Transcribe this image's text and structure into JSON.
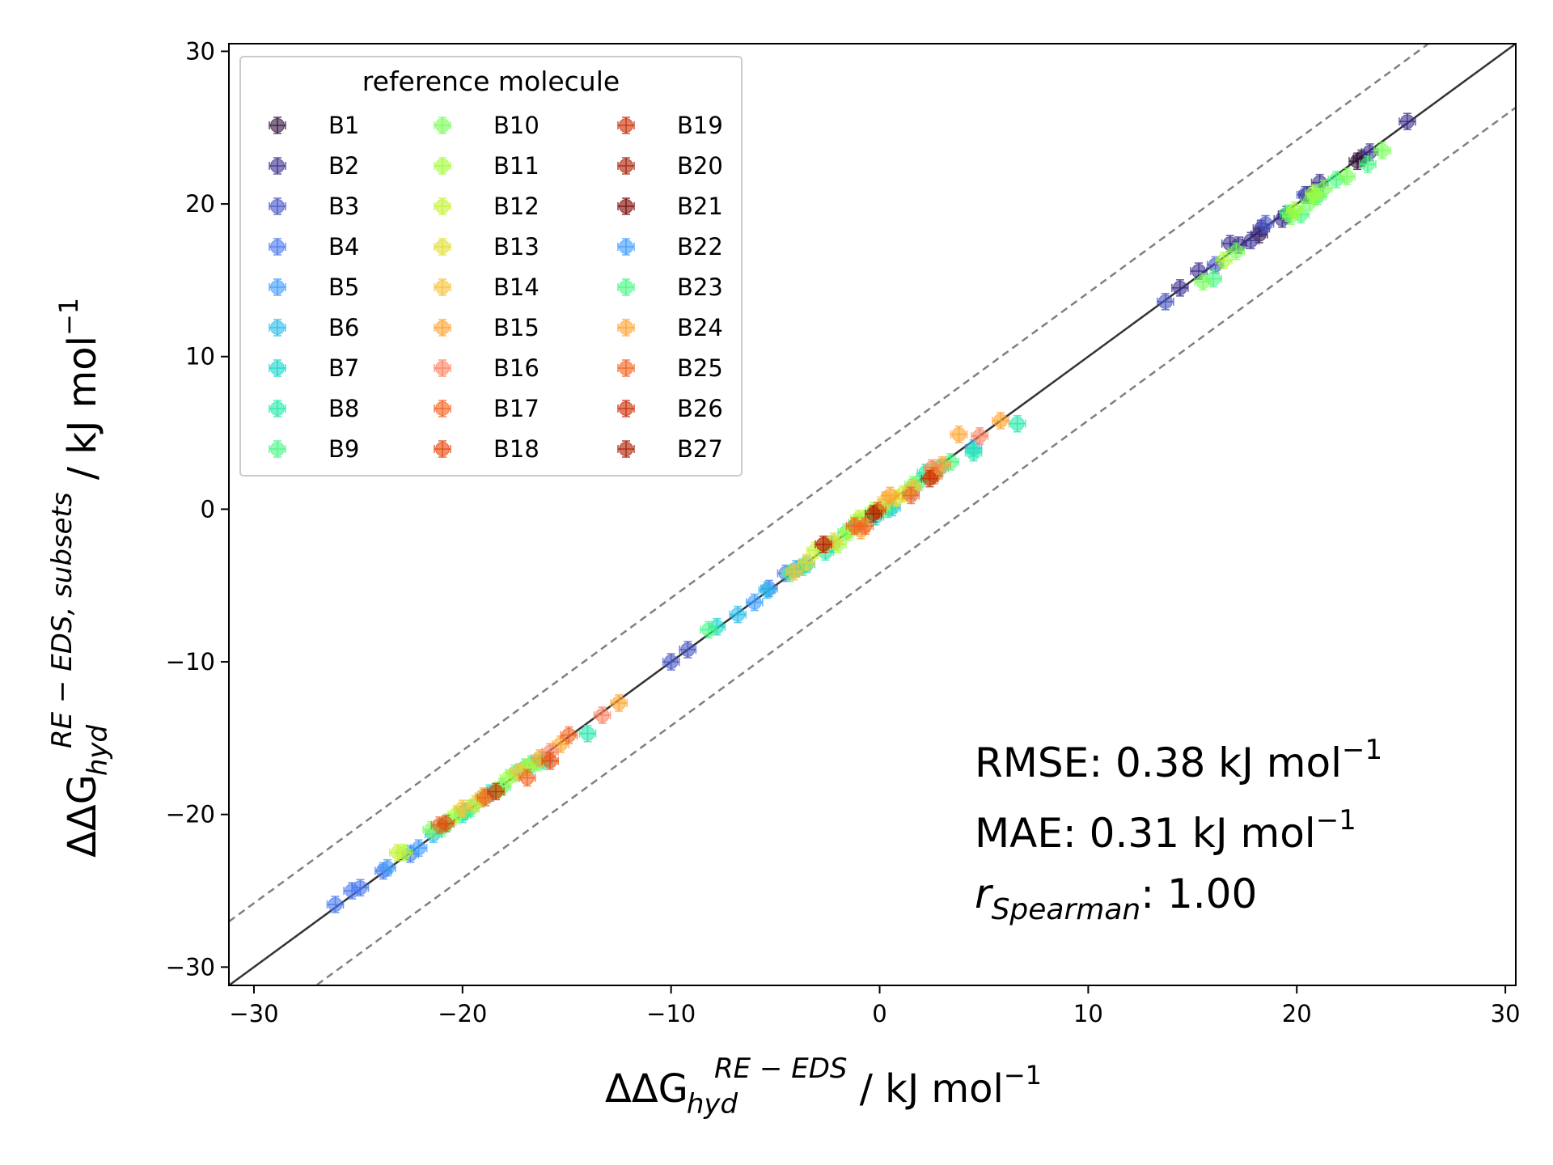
{
  "chart_data": {
    "type": "scatter",
    "xlabel": {
      "prefix": "ΔΔG",
      "sup": "RE − EDS",
      "sub": "hyd",
      "unit": " / kJ mol",
      "unit_sup": "−1"
    },
    "ylabel": {
      "prefix": "ΔΔG",
      "sup": "RE − EDS, subsets",
      "sub": "hyd",
      "unit": " / kJ mol",
      "unit_sup": "−1"
    },
    "xlim": [
      -31.2,
      30.5
    ],
    "ylim": [
      -31.2,
      30.5
    ],
    "x_ticks": [
      -30,
      -20,
      -10,
      0,
      10,
      20,
      30
    ],
    "y_ticks": [
      -30,
      -20,
      -10,
      0,
      10,
      20,
      30
    ],
    "x_tick_labels": [
      "−30",
      "−20",
      "−10",
      "0",
      "10",
      "20",
      "30"
    ],
    "y_tick_labels": [
      "−30",
      "−20",
      "−10",
      "0",
      "10",
      "20",
      "30"
    ],
    "reference_lines": [
      {
        "name": "identity",
        "offset": 0,
        "style": "solid",
        "color": "#333333"
      },
      {
        "name": "upper-bound",
        "offset": 4.184,
        "style": "dashed",
        "color": "#808080"
      },
      {
        "name": "lower-bound",
        "offset": -4.184,
        "style": "dashed",
        "color": "#808080"
      }
    ],
    "legend": {
      "title": "reference molecule",
      "placement": "upper-left",
      "columns": 3,
      "entries": [
        "B1",
        "B2",
        "B3",
        "B4",
        "B5",
        "B6",
        "B7",
        "B8",
        "B9",
        "B10",
        "B11",
        "B12",
        "B13",
        "B14",
        "B15",
        "B16",
        "B17",
        "B18",
        "B19",
        "B20",
        "B21",
        "B22",
        "B23",
        "B24",
        "B25",
        "B26",
        "B27"
      ]
    },
    "series_colors": [
      "#30123b",
      "#3b2f8e",
      "#4454c4",
      "#4777ef",
      "#3e9bfe",
      "#28bceb",
      "#18d6cb",
      "#20eaac",
      "#46f884",
      "#78fe59",
      "#a4fc3c",
      "#c4f133",
      "#e1dd37",
      "#f6c23a",
      "#fea331",
      "#fc8161",
      "#f3601d",
      "#e4460a",
      "#cb2a04",
      "#a81c01",
      "#7a0403",
      "#3e9bfe",
      "#46f884",
      "#fea331",
      "#f3601d",
      "#cb2a04",
      "#a81c01"
    ],
    "series": [
      {
        "name": "B1",
        "color_index": 0,
        "points": [
          [
            22.9,
            22.8
          ],
          [
            23.1,
            23.0
          ],
          [
            18.2,
            18.0
          ],
          [
            20.5,
            20.6
          ]
        ]
      },
      {
        "name": "B2",
        "color_index": 1,
        "points": [
          [
            18.3,
            18.4
          ],
          [
            17.2,
            17.3
          ],
          [
            16.8,
            17.4
          ],
          [
            19.5,
            19.3
          ],
          [
            15.3,
            15.6
          ],
          [
            14.4,
            14.5
          ],
          [
            17.8,
            17.6
          ],
          [
            19.3,
            19.0
          ],
          [
            21.1,
            21.4
          ],
          [
            23.5,
            23.4
          ],
          [
            25.3,
            25.4
          ]
        ]
      },
      {
        "name": "B3",
        "color_index": 2,
        "points": [
          [
            13.7,
            13.6
          ],
          [
            16.1,
            16.0
          ],
          [
            18.5,
            18.7
          ],
          [
            -10.0,
            -10.0
          ],
          [
            -9.2,
            -9.2
          ],
          [
            20.4,
            20.6
          ]
        ]
      },
      {
        "name": "B4",
        "color_index": 3,
        "points": [
          [
            -26.1,
            -25.9
          ],
          [
            -25.3,
            -25.0
          ],
          [
            -24.9,
            -24.8
          ],
          [
            -23.8,
            -23.7
          ],
          [
            -22.5,
            -22.6
          ],
          [
            -5.3,
            -5.2
          ],
          [
            -4.5,
            -4.2
          ],
          [
            -1.0,
            -1.0
          ]
        ]
      },
      {
        "name": "B5",
        "color_index": 4,
        "points": [
          [
            -23.6,
            -23.5
          ],
          [
            -22.1,
            -22.2
          ],
          [
            -6.0,
            -6.1
          ],
          [
            -4.0,
            -3.9
          ],
          [
            1.5,
            1.2
          ]
        ]
      },
      {
        "name": "B6",
        "color_index": 5,
        "points": [
          [
            -21.4,
            -21.3
          ],
          [
            -6.8,
            -6.9
          ],
          [
            -5.4,
            -5.3
          ],
          [
            -3.5,
            -3.6
          ],
          [
            0.6,
            0.1
          ],
          [
            4.5,
            4.0
          ]
        ]
      },
      {
        "name": "B7",
        "color_index": 6,
        "points": [
          [
            -19.9,
            -19.8
          ],
          [
            -18.7,
            -18.6
          ],
          [
            -7.8,
            -7.7
          ],
          [
            -2.3,
            -2.3
          ],
          [
            -0.2,
            -0.5
          ],
          [
            2.9,
            2.7
          ]
        ]
      },
      {
        "name": "B8",
        "color_index": 7,
        "points": [
          [
            -14.0,
            -14.7
          ],
          [
            -16.1,
            -16.5
          ],
          [
            4.5,
            3.7
          ],
          [
            6.6,
            5.6
          ],
          [
            -2.6,
            -2.8
          ]
        ]
      },
      {
        "name": "B9",
        "color_index": 8,
        "points": [
          [
            -21.0,
            -20.9
          ],
          [
            -17.5,
            -17.3
          ],
          [
            -1.6,
            -1.5
          ],
          [
            1.9,
            1.8
          ],
          [
            -8.2,
            -7.9
          ]
        ]
      },
      {
        "name": "B10",
        "color_index": 7,
        "points": [
          [
            -20.0,
            -20.0
          ],
          [
            -16.7,
            -16.7
          ],
          [
            -3.7,
            -3.8
          ],
          [
            2.2,
            2.4
          ],
          [
            0.4,
            0.0
          ]
        ]
      },
      {
        "name": "B11",
        "color_index": 8,
        "points": [
          [
            -19.6,
            -19.6
          ],
          [
            -18.1,
            -18.2
          ],
          [
            16.0,
            15.1
          ],
          [
            20.2,
            19.3
          ],
          [
            21.0,
            20.5
          ],
          [
            23.4,
            22.6
          ]
        ]
      },
      {
        "name": "B12",
        "color_index": 8,
        "points": [
          [
            -17.0,
            -16.9
          ],
          [
            -4.3,
            -4.2
          ],
          [
            -1.1,
            -0.9
          ],
          [
            3.4,
            3.1
          ],
          [
            19.6,
            19.4
          ],
          [
            21.9,
            21.6
          ]
        ]
      },
      {
        "name": "B13",
        "color_index": 9,
        "points": [
          [
            -21.5,
            -21.0
          ],
          [
            -16.4,
            -16.6
          ],
          [
            -0.7,
            -0.6
          ],
          [
            1.6,
            1.6
          ],
          [
            15.5,
            14.9
          ],
          [
            17.1,
            16.9
          ],
          [
            20.9,
            20.5
          ],
          [
            22.4,
            21.8
          ],
          [
            24.1,
            23.5
          ]
        ]
      },
      {
        "name": "B14",
        "color_index": 9,
        "points": [
          [
            -20.7,
            -20.5
          ],
          [
            -19.1,
            -19.0
          ],
          [
            2.5,
            2.2
          ],
          [
            19.7,
            19.2
          ],
          [
            20.6,
            20.1
          ],
          [
            21.3,
            21.0
          ]
        ]
      },
      {
        "name": "B15",
        "color_index": 10,
        "points": [
          [
            -22.8,
            -22.5
          ],
          [
            -18.3,
            -18.4
          ],
          [
            -2.0,
            -2.3
          ],
          [
            0.1,
            0.1
          ],
          [
            16.5,
            16.3
          ],
          [
            19.9,
            19.6
          ],
          [
            20.8,
            20.7
          ]
        ]
      },
      {
        "name": "B16",
        "color_index": 10,
        "points": [
          [
            -20.3,
            -20.0
          ],
          [
            -17.8,
            -17.6
          ],
          [
            -1.5,
            -1.5
          ],
          [
            -0.3,
            -0.1
          ],
          [
            2.6,
            2.6
          ]
        ]
      },
      {
        "name": "B17",
        "color_index": 11,
        "points": [
          [
            -23.1,
            -22.5
          ],
          [
            -16.9,
            -16.9
          ],
          [
            -3.1,
            -2.7
          ],
          [
            -1.0,
            -0.6
          ],
          [
            1.1,
            1.0
          ]
        ]
      },
      {
        "name": "B18",
        "color_index": 12,
        "points": [
          [
            -19.4,
            -19.3
          ],
          [
            -3.5,
            -3.5
          ],
          [
            0.8,
            0.7
          ],
          [
            -2.2,
            -2.1
          ]
        ]
      },
      {
        "name": "B19",
        "color_index": 13,
        "points": [
          [
            -20.0,
            -19.6
          ],
          [
            -17.3,
            -17.2
          ],
          [
            -4.1,
            -4.1
          ],
          [
            0.3,
            0.6
          ],
          [
            1.6,
            1.4
          ]
        ]
      },
      {
        "name": "B20",
        "color_index": 14,
        "points": [
          [
            -19.0,
            -18.8
          ],
          [
            -16.3,
            -16.3
          ],
          [
            -2.6,
            -2.3
          ],
          [
            0.5,
            0.9
          ],
          [
            3.0,
            2.9
          ]
        ]
      },
      {
        "name": "B21",
        "color_index": 14,
        "points": [
          [
            -15.3,
            -15.4
          ],
          [
            -12.5,
            -12.7
          ],
          [
            3.8,
            4.9
          ],
          [
            5.8,
            5.8
          ],
          [
            -0.9,
            -1.4
          ]
        ]
      },
      {
        "name": "B22",
        "color_index": 15,
        "points": [
          [
            -15.8,
            -15.9
          ],
          [
            -13.3,
            -13.5
          ],
          [
            4.8,
            4.8
          ],
          [
            2.5,
            2.7
          ]
        ]
      },
      {
        "name": "B23",
        "color_index": 16,
        "points": [
          [
            -16.9,
            -17.6
          ],
          [
            -14.9,
            -14.8
          ],
          [
            -0.7,
            -1.1
          ],
          [
            2.6,
            2.2
          ]
        ]
      },
      {
        "name": "B24",
        "color_index": 16,
        "points": [
          [
            -21.1,
            -20.7
          ],
          [
            -18.9,
            -18.9
          ],
          [
            1.5,
            0.9
          ],
          [
            -1.2,
            -1.1
          ]
        ]
      },
      {
        "name": "B25",
        "color_index": 17,
        "points": [
          [
            -20.8,
            -20.6
          ],
          [
            -15.8,
            -16.5
          ],
          [
            -0.1,
            -0.1
          ]
        ]
      },
      {
        "name": "B26",
        "color_index": 18,
        "points": [
          [
            -18.4,
            -18.5
          ],
          [
            2.4,
            2.0
          ]
        ]
      },
      {
        "name": "B27",
        "color_index": 19,
        "points": [
          [
            -2.7,
            -2.3
          ],
          [
            -0.3,
            -0.3
          ]
        ]
      }
    ],
    "stats": {
      "rmse_label": "RMSE: 0.38 kJ mol",
      "rmse_sup": "−1",
      "mae_label": "MAE: 0.31 kJ mol",
      "mae_sup": "−1",
      "spearman_prefix": "r",
      "spearman_sub": "Spearman",
      "spearman_value": ": 1.00"
    }
  }
}
